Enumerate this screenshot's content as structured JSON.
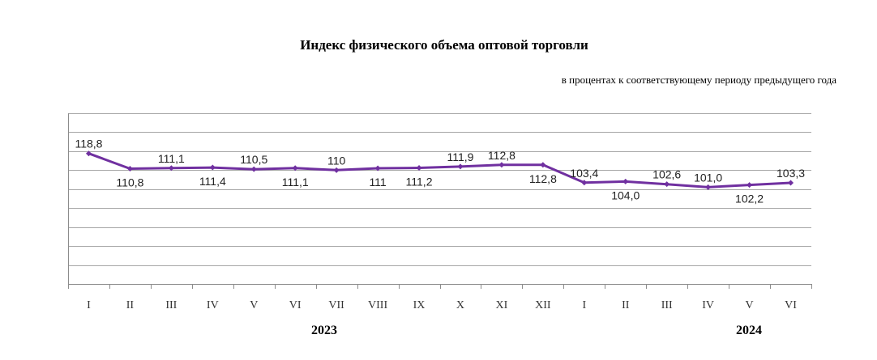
{
  "chart_data": {
    "type": "line",
    "title": "Индекс физического объема оптовой торговли",
    "subtitle": "в процентах к соответствующему периоду предыдущего года",
    "categories": [
      "I",
      "II",
      "III",
      "IV",
      "V",
      "VI",
      "VII",
      "VIII",
      "IX",
      "X",
      "XI",
      "XII",
      "I",
      "II",
      "III",
      "IV",
      "V",
      "VI"
    ],
    "year_groups": [
      {
        "label": "2023",
        "start": 0,
        "end": 11
      },
      {
        "label": "2024",
        "start": 12,
        "end": 17
      }
    ],
    "series": [
      {
        "values": [
          118.8,
          110.8,
          111.1,
          111.4,
          110.5,
          111.1,
          110,
          111,
          111.2,
          111.9,
          112.8,
          112.8,
          103.4,
          104.0,
          102.6,
          101.0,
          102.2,
          103.3
        ],
        "labels": [
          "118,8",
          "110,8",
          "111,1",
          "111,4",
          "110,5",
          "111,1",
          "110",
          "111",
          "111,2",
          "111,9",
          "112,8",
          "112,8",
          "103,4",
          "104,0",
          "102,6",
          "101,0",
          "102,2",
          "103,3"
        ],
        "label_pos": [
          "above",
          "below",
          "above",
          "below",
          "above",
          "below",
          "above",
          "below",
          "below",
          "above",
          "above",
          "below",
          "above",
          "below",
          "above",
          "above",
          "below",
          "above"
        ]
      }
    ],
    "ylim": [
      50,
      140
    ],
    "grid": true,
    "legend": "none",
    "line_color": "#7030a0"
  }
}
